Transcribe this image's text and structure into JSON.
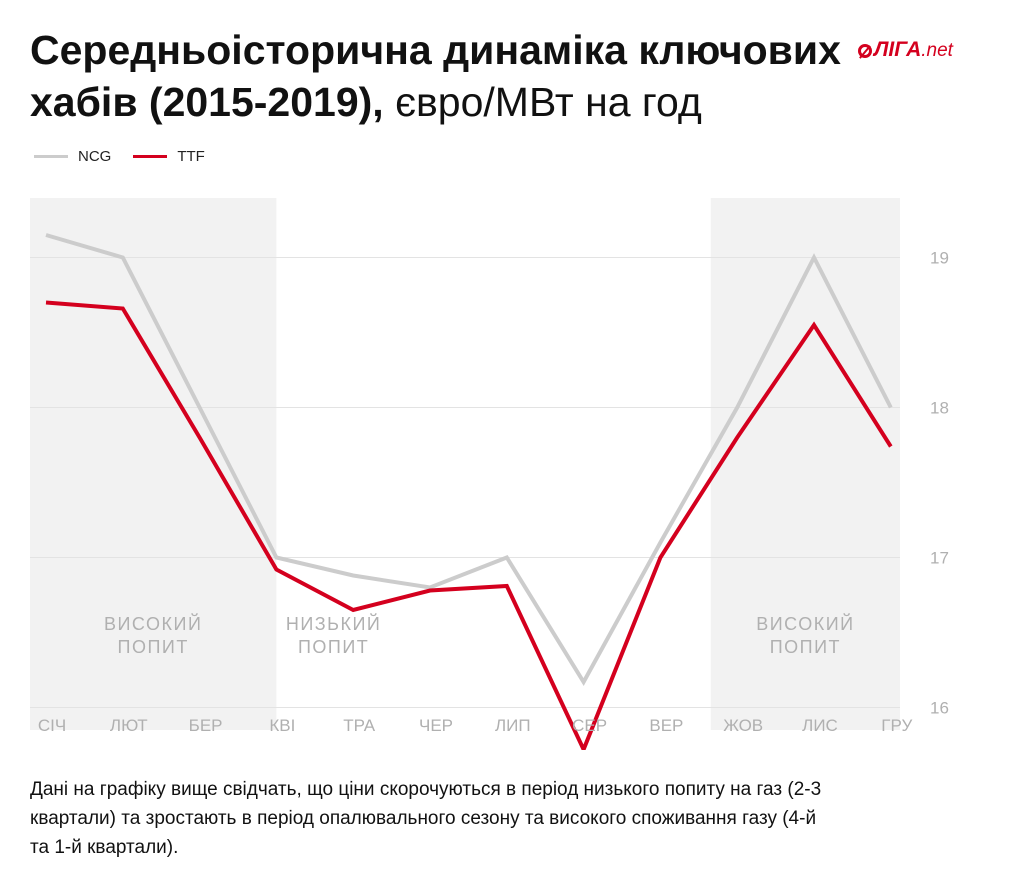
{
  "header": {
    "title_bold": "Середньоісторична динаміка ключових хабів (2015-2019),",
    "title_light": "євро/МВт на год",
    "logo_text": "ЛІГА",
    "logo_net": ".net"
  },
  "colors": {
    "ncg": "#cccccc",
    "ttf": "#d4001e",
    "band": "#f2f2f2",
    "grid": "#e3e3e3",
    "axis_text": "#b0b0b0",
    "brand": "#d4001e"
  },
  "chart_data": {
    "type": "line",
    "x": [
      "СІЧ",
      "ЛЮТ",
      "БЕР",
      "КВІ",
      "ТРА",
      "ЧЕР",
      "ЛИП",
      "СЕР",
      "ВЕР",
      "ЖОВ",
      "ЛИС",
      "ГРУ"
    ],
    "series": [
      {
        "name": "NCG",
        "values": [
          19.15,
          19.0,
          18.0,
          17.0,
          16.88,
          16.8,
          17.0,
          16.17,
          17.1,
          18.0,
          19.0,
          18.0
        ]
      },
      {
        "name": "TTF",
        "values": [
          18.7,
          18.66,
          17.8,
          16.92,
          16.65,
          16.78,
          16.81,
          15.72,
          17.0,
          17.8,
          18.55,
          17.74
        ]
      }
    ],
    "y_ticks": [
      16,
      17,
      18,
      19
    ],
    "ylim": [
      15.85,
      19.45
    ],
    "y_axis_side": "right",
    "grid": true,
    "legend_position": "top-left",
    "bands": [
      {
        "from": "СІЧ",
        "to": "КВІ",
        "label_line1": "ВИСОКИЙ",
        "label_line2": "ПОПИТ",
        "shaded": true
      },
      {
        "from": "КВІ",
        "to": "ЛИП",
        "label_line1": "НИЗЬКИЙ",
        "label_line2": "ПОПИТ",
        "shaded": false
      },
      {
        "from": "ЖОВ",
        "to": "ГРУ",
        "label_line1": "ВИСОКИЙ",
        "label_line2": "ПОПИТ",
        "shaded": true
      }
    ]
  },
  "footer": {
    "note": "Дані на графіку вище свідчать, що ціни скорочуються в період низького попиту на газ (2-3 квартали) та зростають в період опалювального сезону та високого споживання газу (4-й та 1-й квартали)."
  }
}
